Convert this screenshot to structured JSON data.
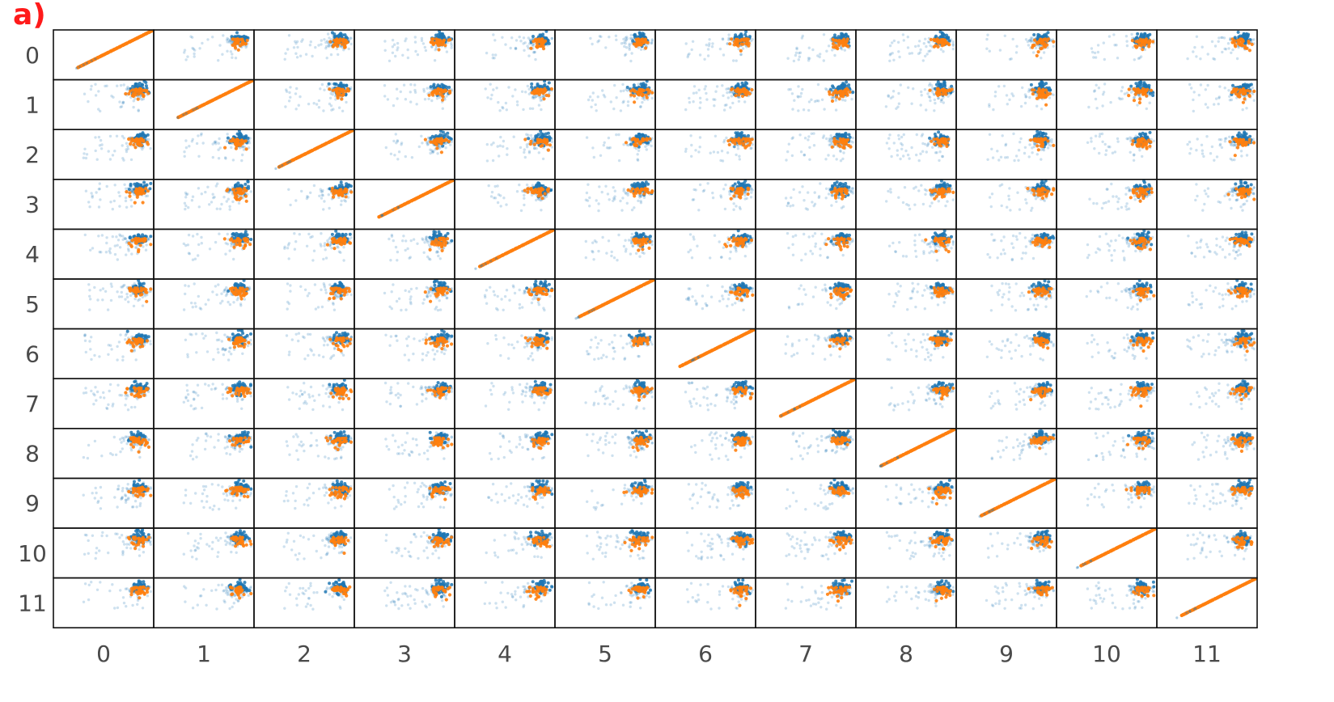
{
  "panel_label": "a)",
  "chart_data": {
    "type": "scatter",
    "subtype": "pair-plot scatter matrix",
    "title": "",
    "xlabel": "",
    "ylabel": "",
    "grid": false,
    "variables": [
      "0",
      "1",
      "2",
      "3",
      "4",
      "5",
      "6",
      "7",
      "8",
      "9",
      "10",
      "11"
    ],
    "row_tick_labels": [
      "0",
      "1",
      "2",
      "3",
      "4",
      "5",
      "6",
      "7",
      "8",
      "9",
      "10",
      "11"
    ],
    "col_tick_labels": [
      "0",
      "1",
      "2",
      "3",
      "4",
      "5",
      "6",
      "7",
      "8",
      "9",
      "10",
      "11"
    ],
    "series": [
      {
        "color": "#1f77b4",
        "alpha": 0.15,
        "role": "background points",
        "pattern": "dense cluster upper-right of each off-diagonal panel, sparse tail toward left/bottom"
      },
      {
        "color": "#ff7f0e",
        "role": "highlighted subset",
        "pattern": "diagonal panels show a straight increasing line; off-diagonal panels show a cluster near the upper-right"
      }
    ],
    "diagonal_relationship": "identity (y = x)"
  },
  "colors": {
    "blue": "#1f77b4",
    "orange": "#ff7f0e",
    "label_red": "#ff1a1a",
    "tick_text": "#4a4a4a",
    "frame": "#111111"
  }
}
